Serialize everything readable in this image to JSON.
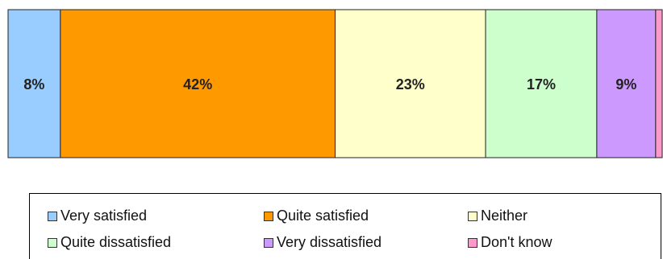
{
  "chart_data": {
    "type": "bar",
    "orientation": "horizontal-stacked-100",
    "categories": [
      ""
    ],
    "series": [
      {
        "name": "Very satisfied",
        "values": [
          8
        ],
        "label": "8%",
        "color": "#99ccff"
      },
      {
        "name": "Quite satisfied",
        "values": [
          42
        ],
        "label": "42%",
        "color": "#ff9900"
      },
      {
        "name": "Neither",
        "values": [
          23
        ],
        "label": "23%",
        "color": "#ffffcc"
      },
      {
        "name": "Quite dissatisfied",
        "values": [
          17
        ],
        "label": "17%",
        "color": "#ccffcc"
      },
      {
        "name": "Very dissatisfied",
        "values": [
          9
        ],
        "label": "9%",
        "color": "#cc99ff"
      },
      {
        "name": "Don't know",
        "values": [
          1
        ],
        "label": "",
        "color": "#ff99cc"
      }
    ],
    "xlim": [
      0,
      100
    ],
    "legend": "bottom",
    "grid": false
  }
}
